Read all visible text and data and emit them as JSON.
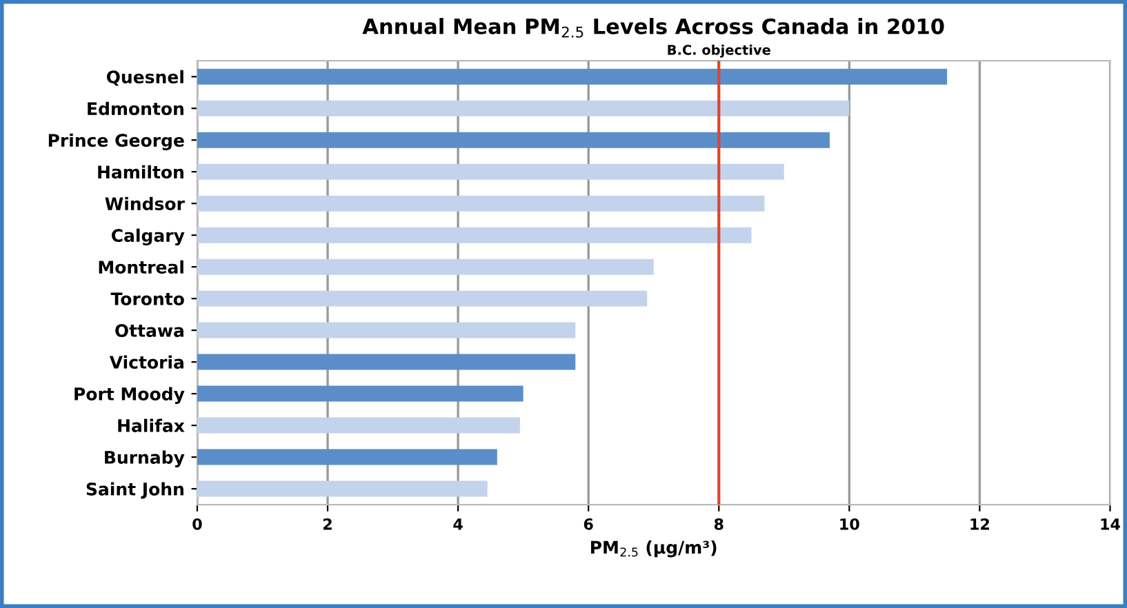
{
  "chart_data": {
    "type": "bar",
    "orientation": "horizontal",
    "title": "Annual Mean PM$_{2.5}$ Levels Across Canada in 2010",
    "xlabel": "PM$_{2.5}$ (µg/m³)",
    "categories": [
      "Quesnel",
      "Edmonton",
      "Prince George",
      "Hamilton",
      "Windsor",
      "Calgary",
      "Montreal",
      "Toronto",
      "Ottawa",
      "Victoria",
      "Port Moody",
      "Halifax",
      "Burnaby",
      "Saint John"
    ],
    "values": [
      11.5,
      10.0,
      9.7,
      9.0,
      8.7,
      8.5,
      7.0,
      6.9,
      5.8,
      5.8,
      5.0,
      4.95,
      4.6,
      4.45
    ],
    "colors": [
      "#5b8ec9",
      "#c3d3eb",
      "#5b8ec9",
      "#c3d3eb",
      "#c3d3eb",
      "#c3d3eb",
      "#c3d3eb",
      "#c3d3eb",
      "#c3d3eb",
      "#5b8ec9",
      "#5b8ec9",
      "#c3d3eb",
      "#5b8ec9",
      "#c3d3eb"
    ],
    "xlim": [
      0,
      14
    ],
    "xticks": [
      0,
      2,
      4,
      6,
      8,
      10,
      12,
      14
    ],
    "grid": "x",
    "legend": false,
    "ref_lines": [
      {
        "axis": "x",
        "value": 8,
        "label": "B.C. objective",
        "color": "#e0442c"
      }
    ]
  }
}
